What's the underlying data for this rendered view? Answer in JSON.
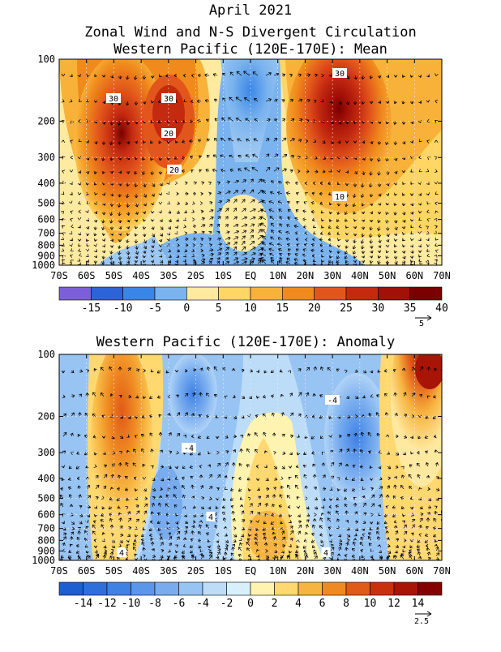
{
  "header": {
    "title": "April 2021",
    "subtitle": "Zonal Wind and N-S Divergent Circulation"
  },
  "chart_data": [
    {
      "type": "heatmap",
      "title": "Western Pacific (120E-170E): Mean",
      "x_ticks": [
        "70S",
        "60S",
        "50S",
        "40S",
        "30S",
        "20S",
        "10S",
        "EQ",
        "10N",
        "20N",
        "30N",
        "40N",
        "50N",
        "60N",
        "70N"
      ],
      "y_ticks": [
        "100",
        "200",
        "300",
        "400",
        "500",
        "600",
        "700",
        "800",
        "900",
        "1000"
      ],
      "y_scale": "log-pressure",
      "ylim": [
        1000,
        100
      ],
      "colorbar": {
        "levels": [
          "-15",
          "-10",
          "-5",
          "0",
          "5",
          "10",
          "15",
          "20",
          "25",
          "30",
          "35",
          "40"
        ],
        "colors": [
          "#7b5fd6",
          "#2d63d8",
          "#3a86e6",
          "#7ab3ee",
          "#ffeaa0",
          "#ffd564",
          "#f8b23a",
          "#f08a1c",
          "#e2561c",
          "#c42a10",
          "#a31008",
          "#7a0000"
        ]
      },
      "contour_labels": [
        "30",
        "30",
        "20",
        "30",
        "20",
        "10"
      ],
      "vector_ref": "5",
      "features": [
        {
          "name": "SH jet core",
          "lat": -50,
          "p": 250,
          "value": 35
        },
        {
          "name": "NH jet core",
          "lat": 33,
          "p": 200,
          "value": 40
        },
        {
          "name": "equatorial easterlies",
          "lat": 5,
          "p": 150,
          "value": -8
        }
      ]
    },
    {
      "type": "heatmap",
      "title": "Western Pacific (120E-170E): Anomaly",
      "x_ticks": [
        "70S",
        "60S",
        "50S",
        "40S",
        "30S",
        "20S",
        "10S",
        "EQ",
        "10N",
        "20N",
        "30N",
        "40N",
        "50N",
        "60N",
        "70N"
      ],
      "y_ticks": [
        "100",
        "200",
        "300",
        "400",
        "500",
        "600",
        "700",
        "800",
        "900",
        "1000"
      ],
      "y_scale": "log-pressure",
      "ylim": [
        1000,
        100
      ],
      "colorbar": {
        "levels": [
          "-14",
          "-12",
          "-10",
          "-8",
          "-6",
          "-4",
          "-2",
          "0",
          "2",
          "4",
          "6",
          "8",
          "10",
          "12",
          "14"
        ],
        "colors": [
          "#1e5ed0",
          "#2f6fdc",
          "#3f82e4",
          "#5a97ea",
          "#78acef",
          "#98c4f4",
          "#bcdcf8",
          "#d8f0fb",
          "#fff3b0",
          "#ffd870",
          "#f7b440",
          "#ef8a22",
          "#e05a18",
          "#c8300e",
          "#a81406",
          "#860000"
        ]
      },
      "contour_labels": [
        "-4",
        "-4",
        "4",
        "4",
        "4"
      ],
      "vector_ref": "2.5",
      "features": [
        {
          "name": "SH westerly anomaly",
          "lat": -47,
          "p": 250,
          "value": 8
        },
        {
          "name": "NH high-lat westerly anomaly",
          "lat": 68,
          "p": 130,
          "value": 12
        },
        {
          "name": "subtropical easterly anomaly",
          "lat": -20,
          "p": 170,
          "value": -8
        }
      ]
    }
  ]
}
